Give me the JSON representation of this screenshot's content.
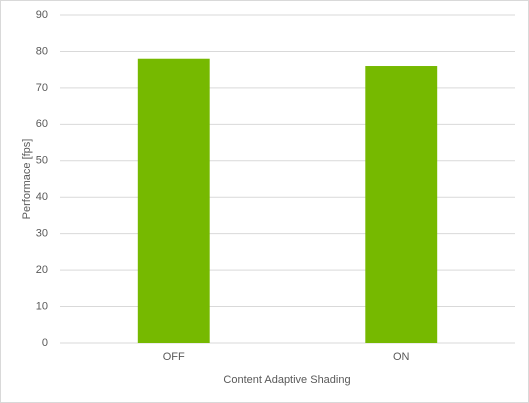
{
  "chart_data": {
    "type": "bar",
    "x_label": "Content Adaptive Shading",
    "y_label": "Performace [fps]",
    "categories": [
      "OFF",
      "ON"
    ],
    "values": [
      78,
      76
    ],
    "color": "#76b900",
    "ylim": [
      0,
      90
    ],
    "yticks": [
      0,
      10,
      20,
      30,
      40,
      50,
      60,
      70,
      80,
      90
    ],
    "grid": true
  }
}
